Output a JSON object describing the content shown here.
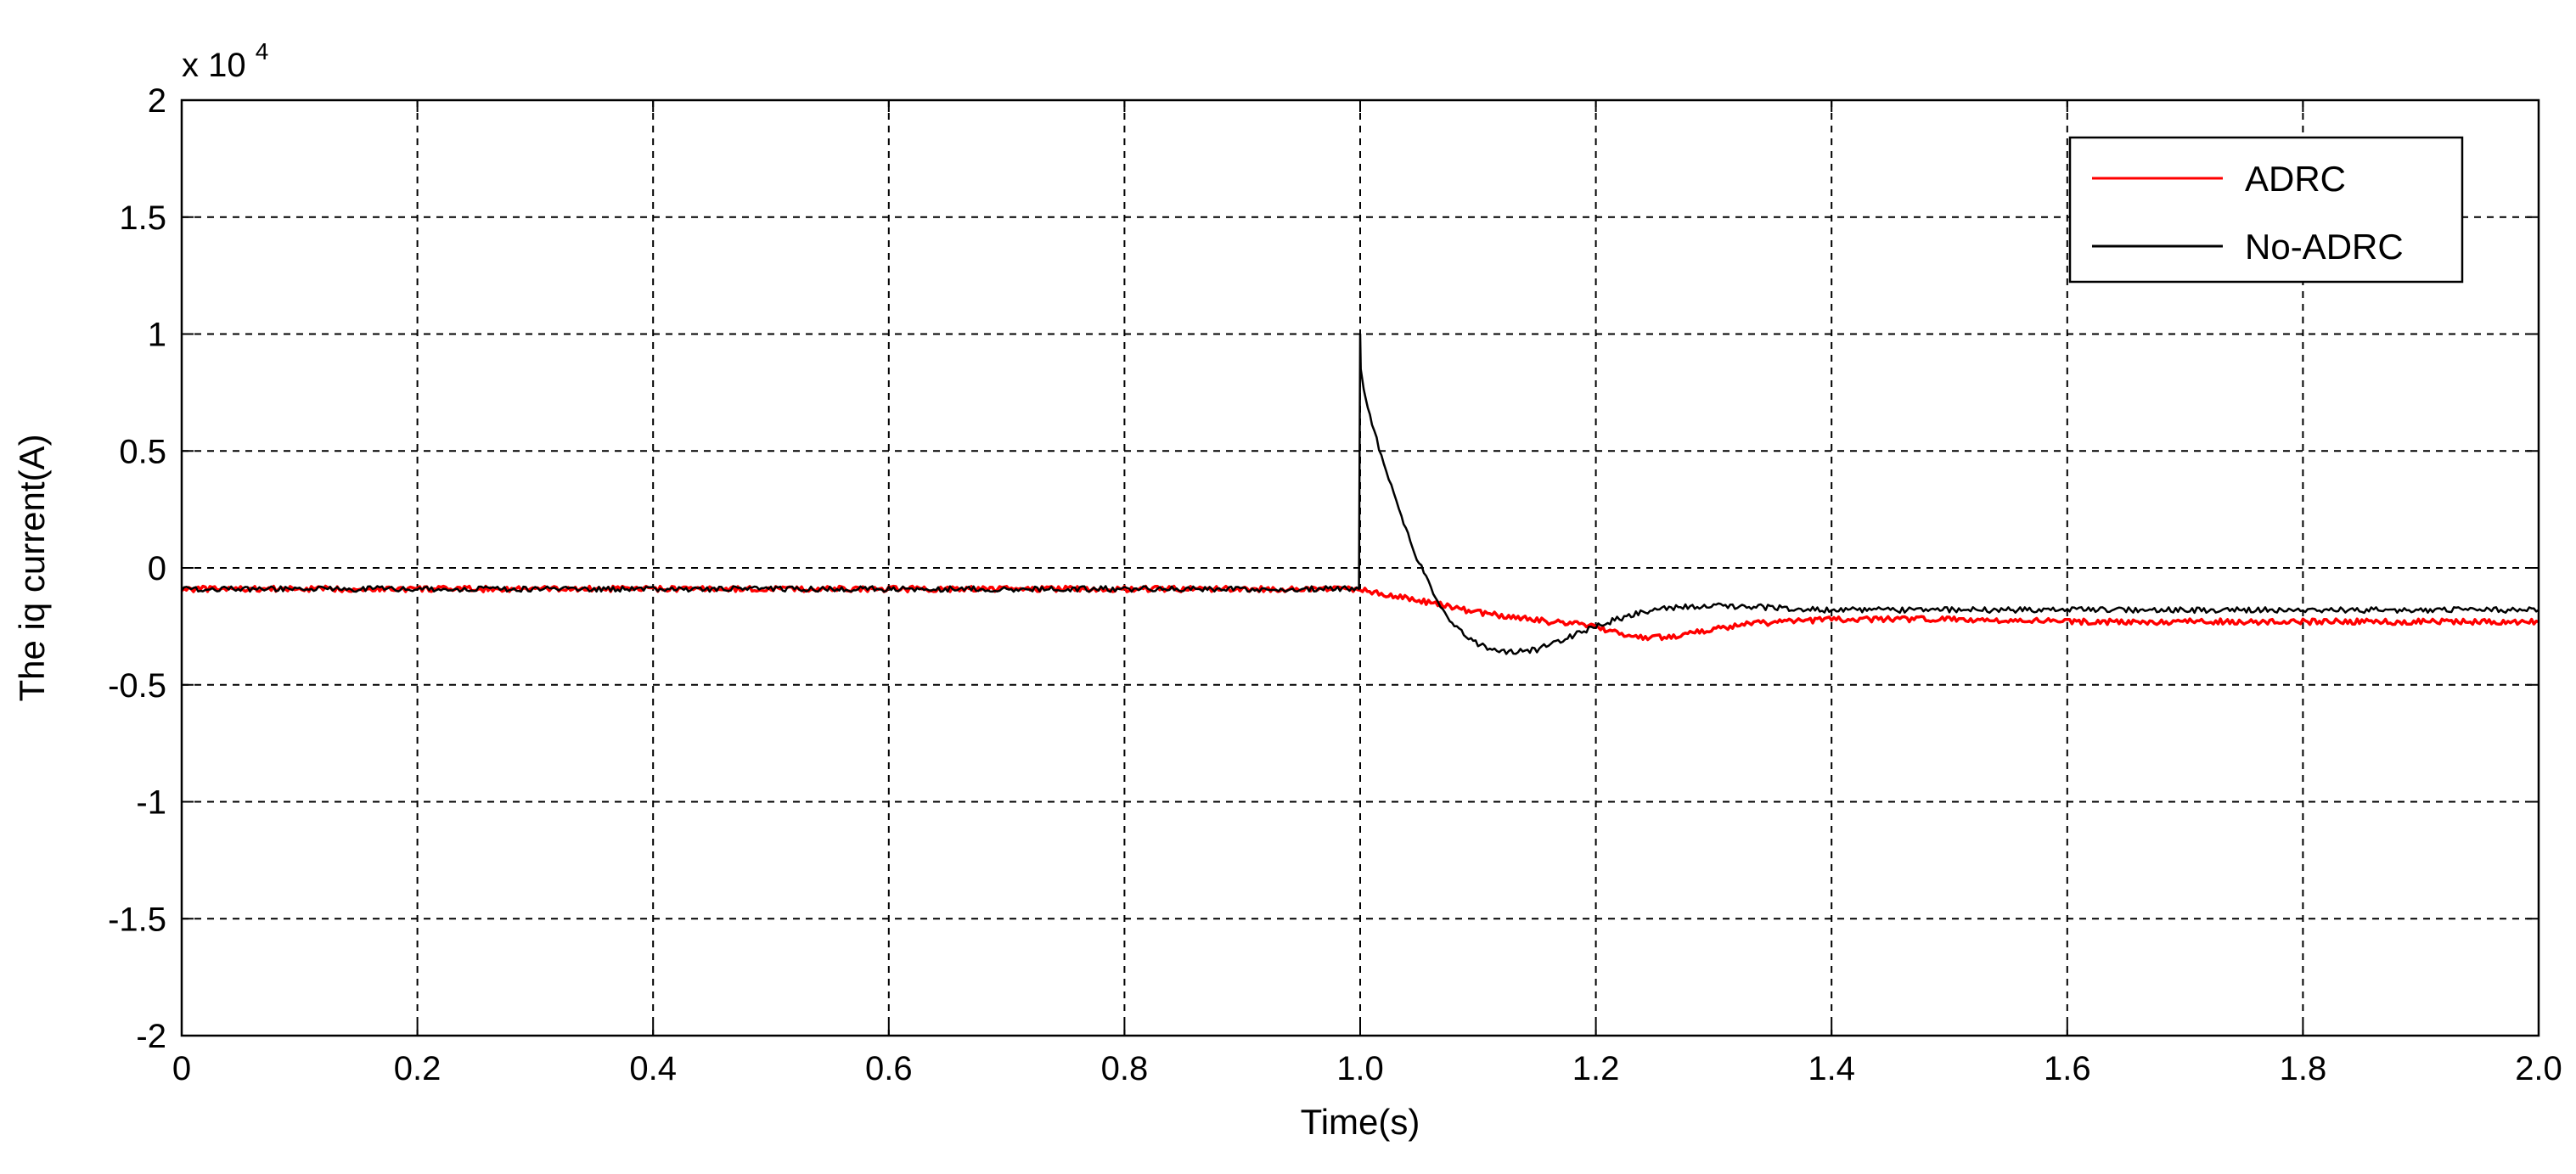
{
  "chart_data": {
    "type": "line",
    "xlabel": "Time(s)",
    "ylabel": "The iq current(A)",
    "y_multiplier_label": {
      "base": "x 10",
      "exponent": "4"
    },
    "xlim": [
      0,
      2
    ],
    "ylim": [
      -2,
      2
    ],
    "x_ticks": [
      0,
      0.2,
      0.4,
      0.6,
      0.8,
      1.0,
      1.2,
      1.4,
      1.6,
      1.8,
      2.0
    ],
    "x_tick_labels": [
      "0",
      "0.2",
      "0.4",
      "0.6",
      "0.8",
      "1.0",
      "1.2",
      "1.4",
      "1.6",
      "1.8",
      "2.0"
    ],
    "y_ticks": [
      2,
      1.5,
      1,
      0.5,
      0,
      -0.5,
      -1,
      -1.5,
      -2
    ],
    "y_tick_labels": [
      "2",
      "1.5",
      "1",
      "0.5",
      "0",
      "-0.5",
      "-1",
      "-1.5",
      "-2"
    ],
    "grid": true,
    "legend_position": "top-right",
    "series": [
      {
        "name": "ADRC",
        "color": "#ff0000",
        "x": [
          0,
          0.2,
          0.4,
          0.6,
          0.8,
          1.0,
          1.02,
          1.05,
          1.08,
          1.1,
          1.13,
          1.16,
          1.19,
          1.22,
          1.24,
          1.27,
          1.3,
          1.33,
          1.36,
          1.4,
          1.5,
          1.6,
          1.7,
          1.8,
          1.9,
          2.0
        ],
        "y": [
          -0.09,
          -0.09,
          -0.09,
          -0.09,
          -0.09,
          -0.09,
          -0.11,
          -0.14,
          -0.17,
          -0.19,
          -0.21,
          -0.23,
          -0.24,
          -0.28,
          -0.3,
          -0.29,
          -0.26,
          -0.24,
          -0.23,
          -0.22,
          -0.22,
          -0.23,
          -0.23,
          -0.23,
          -0.23,
          -0.23
        ]
      },
      {
        "name": "No-ADRC",
        "color": "#000000",
        "x": [
          0,
          0.2,
          0.4,
          0.6,
          0.8,
          0.999,
          1.0,
          1.0005,
          1.003,
          1.01,
          1.02,
          1.035,
          1.05,
          1.07,
          1.09,
          1.11,
          1.13,
          1.15,
          1.17,
          1.2,
          1.23,
          1.26,
          1.3,
          1.35,
          1.4,
          1.5,
          1.6,
          1.7,
          1.8,
          1.9,
          2.0
        ],
        "y": [
          -0.09,
          -0.09,
          -0.09,
          -0.09,
          -0.09,
          -0.09,
          1.0,
          0.85,
          0.77,
          0.62,
          0.44,
          0.22,
          0.02,
          -0.18,
          -0.3,
          -0.35,
          -0.36,
          -0.35,
          -0.31,
          -0.25,
          -0.2,
          -0.17,
          -0.16,
          -0.17,
          -0.18,
          -0.18,
          -0.18,
          -0.18,
          -0.18,
          -0.18,
          -0.18
        ]
      }
    ]
  }
}
